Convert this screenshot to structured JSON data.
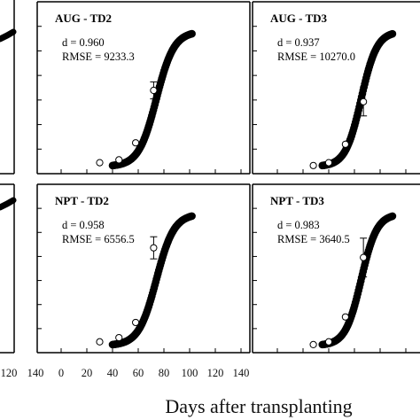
{
  "chart_data": {
    "type": "scatter",
    "xlabel": "Days after transplanting",
    "x_tick_labels": [
      "120",
      "140",
      "0",
      "20",
      "40",
      "60",
      "80",
      "100",
      "120",
      "140"
    ],
    "xlim": [
      0,
      140
    ],
    "panels": [
      {
        "id": "aug-td2",
        "title": "AUG - TD2",
        "d": "d = 0.960",
        "rmse": "RMSE = 9233.3",
        "observed": [
          {
            "x": 30,
            "y": 0.04
          },
          {
            "x": 45,
            "y": 0.06
          },
          {
            "x": 58,
            "y": 0.18
          },
          {
            "x": 72,
            "y": 0.55,
            "err": 0.06
          }
        ],
        "simulated_range": [
          40,
          102
        ]
      },
      {
        "id": "aug-td3",
        "title": "AUG - TD3",
        "d": "d = 0.937",
        "rmse": "RMSE = 10270.0",
        "observed": [
          {
            "x": 28,
            "y": 0.02
          },
          {
            "x": 40,
            "y": 0.04
          },
          {
            "x": 53,
            "y": 0.17
          },
          {
            "x": 67,
            "y": 0.47,
            "err": 0.1
          }
        ],
        "simulated_range": [
          35,
          90
        ]
      },
      {
        "id": "npt-td2",
        "title": "NPT - TD2",
        "d": "d = 0.958",
        "rmse": "RMSE = 6556.5",
        "observed": [
          {
            "x": 30,
            "y": 0.04
          },
          {
            "x": 45,
            "y": 0.07
          },
          {
            "x": 58,
            "y": 0.18
          },
          {
            "x": 72,
            "y": 0.72,
            "err": 0.08
          }
        ],
        "simulated_range": [
          40,
          102
        ]
      },
      {
        "id": "npt-td3",
        "title": "NPT - TD3",
        "d": "d = 0.983",
        "rmse": "RMSE = 3640.5",
        "observed": [
          {
            "x": 28,
            "y": 0.02
          },
          {
            "x": 40,
            "y": 0.04
          },
          {
            "x": 53,
            "y": 0.22
          },
          {
            "x": 67,
            "y": 0.65,
            "err": 0.14
          }
        ],
        "simulated_range": [
          35,
          90
        ]
      }
    ]
  }
}
